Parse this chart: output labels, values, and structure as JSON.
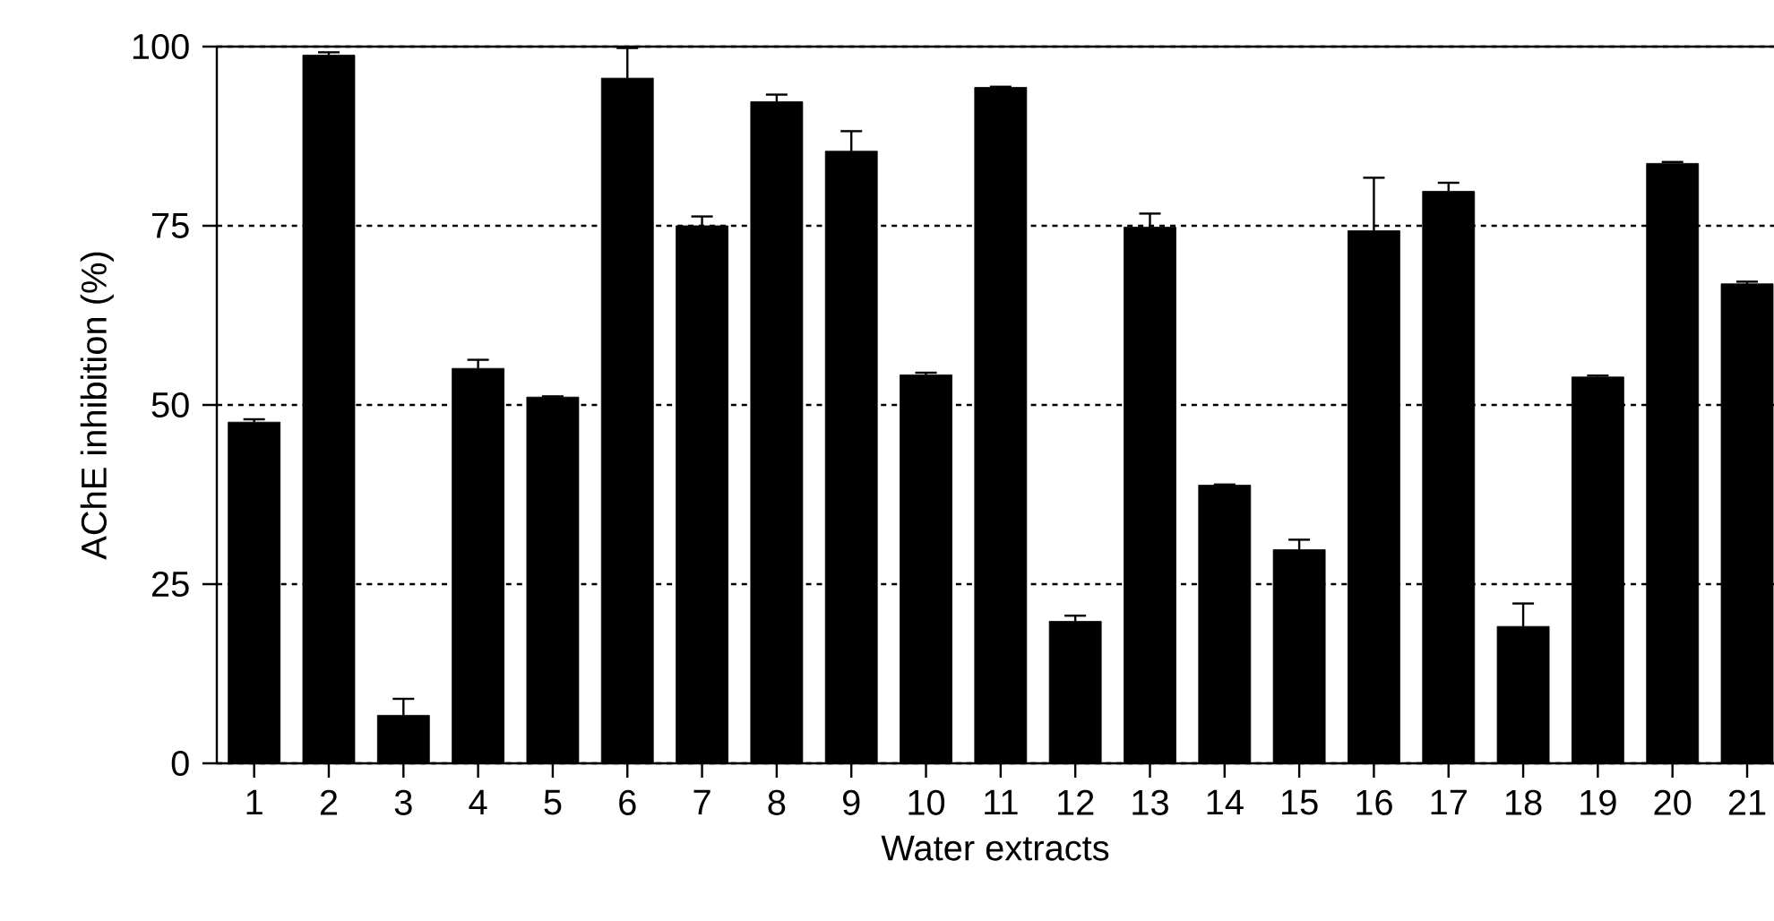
{
  "chart_data": {
    "type": "bar",
    "xlabel": "Water extracts",
    "ylabel": "AChE inhibition (%)",
    "categories": [
      "1",
      "2",
      "3",
      "4",
      "5",
      "6",
      "7",
      "8",
      "9",
      "10",
      "11",
      "12",
      "13",
      "14",
      "15",
      "16",
      "17",
      "18",
      "19",
      "20",
      "21"
    ],
    "values": [
      47.6,
      98.8,
      6.7,
      55.1,
      51.1,
      95.6,
      75.0,
      92.3,
      85.4,
      54.2,
      94.3,
      19.8,
      74.8,
      38.8,
      29.8,
      74.3,
      79.8,
      19.1,
      53.9,
      83.7,
      66.9
    ],
    "errors": [
      0.4,
      0.4,
      2.3,
      1.2,
      0.1,
      4.2,
      1.3,
      1.0,
      2.8,
      0.3,
      0.1,
      0.8,
      1.9,
      0.1,
      1.4,
      7.4,
      1.2,
      3.2,
      0.2,
      0.2,
      0.3
    ],
    "color": "#000000",
    "ylim": [
      0,
      100
    ],
    "yticks": [
      0,
      25,
      50,
      75,
      100
    ],
    "grid": "y"
  }
}
